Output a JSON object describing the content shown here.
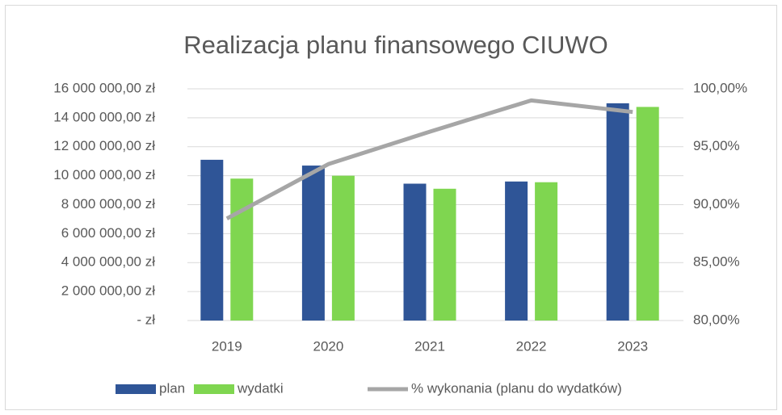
{
  "chart_data": {
    "type": "bar",
    "title": "Realizacja planu finansowego CIUWO",
    "categories": [
      "2019",
      "2020",
      "2021",
      "2022",
      "2023"
    ],
    "series": [
      {
        "name": "plan",
        "type": "bar",
        "color": "#2f5597",
        "values": [
          11100000,
          10700000,
          9450000,
          9600000,
          15000000
        ]
      },
      {
        "name": "wydatki",
        "type": "bar",
        "color": "#7fd650",
        "values": [
          9800000,
          10000000,
          9100000,
          9550000,
          14750000
        ]
      },
      {
        "name": "% wykonania (planu do wydatków)",
        "type": "line",
        "axis": "y2",
        "color": "#a6a6a6",
        "values": [
          88.8,
          93.5,
          96.3,
          99.0,
          98.0
        ]
      }
    ],
    "ylim": [
      0,
      16000000
    ],
    "yticks": [
      {
        "value": 0,
        "label": "-   zł"
      },
      {
        "value": 2000000,
        "label": "2 000 000,00 zł"
      },
      {
        "value": 4000000,
        "label": "4 000 000,00 zł"
      },
      {
        "value": 6000000,
        "label": "6 000 000,00 zł"
      },
      {
        "value": 8000000,
        "label": "8 000 000,00 zł"
      },
      {
        "value": 10000000,
        "label": "10 000 000,00 zł"
      },
      {
        "value": 12000000,
        "label": "12 000 000,00 zł"
      },
      {
        "value": 14000000,
        "label": "14 000 000,00 zł"
      },
      {
        "value": 16000000,
        "label": "16 000 000,00 zł"
      }
    ],
    "y2lim": [
      80,
      100
    ],
    "y2ticks": [
      {
        "value": 80,
        "label": "80,00%"
      },
      {
        "value": 85,
        "label": "85,00%"
      },
      {
        "value": 90,
        "label": "90,00%"
      },
      {
        "value": 95,
        "label": "95,00%"
      },
      {
        "value": 100,
        "label": "100,00%"
      }
    ],
    "grid": true,
    "legend": "bottom"
  }
}
